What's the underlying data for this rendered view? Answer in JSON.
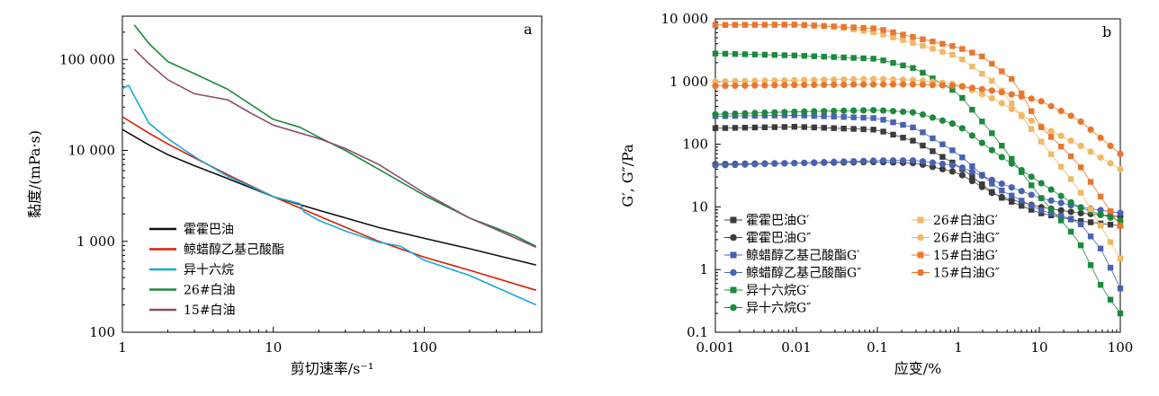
{
  "chart_data": [
    {
      "type": "line",
      "panel_label": "a",
      "xlabel": "剪切速率/s⁻¹",
      "ylabel": "黏度/(mPa·s)",
      "xscale": "log",
      "yscale": "log",
      "xlim": [
        1,
        600
      ],
      "ylim": [
        100,
        300000
      ],
      "xticks": [
        1,
        10,
        100
      ],
      "xtick_labels": [
        "1",
        "10",
        "100"
      ],
      "yticks": [
        100,
        1000,
        10000,
        100000
      ],
      "ytick_labels": [
        "100",
        "1 000",
        "10 000",
        "100 000"
      ],
      "legend_position": "bottom-left",
      "grid": false,
      "series": [
        {
          "name": "霍霍巴油",
          "color": "#111111",
          "x": [
            1,
            1.5,
            2,
            3,
            5,
            10,
            20,
            50,
            100,
            200,
            550
          ],
          "y": [
            17000,
            11500,
            9000,
            6800,
            4900,
            3100,
            2200,
            1420,
            1080,
            830,
            550
          ]
        },
        {
          "name": "鲸蜡醇乙基己酸酯",
          "color": "#d81e06",
          "x": [
            1,
            1.5,
            2,
            3,
            5,
            10,
            20,
            50,
            100,
            200,
            550
          ],
          "y": [
            23500,
            15500,
            11800,
            8300,
            5400,
            3100,
            1900,
            1000,
            670,
            480,
            290
          ]
        },
        {
          "name": "异十六烷",
          "color": "#16a9d6",
          "x": [
            1,
            1.1,
            1.5,
            2,
            2.6,
            3.2,
            5,
            10,
            15,
            16,
            20,
            30,
            50,
            70,
            100,
            200,
            550
          ],
          "y": [
            48000,
            52000,
            20000,
            13500,
            10000,
            8000,
            5200,
            3100,
            2600,
            2100,
            1700,
            1300,
            980,
            880,
            620,
            420,
            200
          ]
        },
        {
          "name": "26#白油",
          "color": "#1c8a3c",
          "x": [
            1.2,
            1.5,
            2,
            3,
            5,
            10,
            15,
            20,
            30,
            50,
            100,
            200,
            300,
            400,
            550
          ],
          "y": [
            240000,
            150000,
            95000,
            70000,
            47000,
            22000,
            18000,
            14000,
            10000,
            6200,
            3200,
            1800,
            1400,
            1150,
            880
          ]
        },
        {
          "name": "15#白油",
          "color": "#8e4d6b",
          "x": [
            1.2,
            1.5,
            2,
            3,
            5,
            7,
            10,
            20,
            30,
            50,
            100,
            200,
            300,
            550
          ],
          "y": [
            130000,
            90000,
            60000,
            42000,
            36000,
            26000,
            19000,
            13500,
            10500,
            7000,
            3400,
            1800,
            1350,
            860
          ]
        }
      ]
    },
    {
      "type": "scatter",
      "panel_label": "b",
      "xlabel": "应变/%",
      "ylabel": "G′, G″/Pa",
      "xscale": "log",
      "yscale": "log",
      "xlim": [
        0.001,
        100
      ],
      "ylim": [
        0.1,
        10000
      ],
      "xticks": [
        0.001,
        0.01,
        0.1,
        1,
        10,
        100
      ],
      "xtick_labels": [
        "0.001",
        "0.01",
        "0.1",
        "1",
        "10",
        "100"
      ],
      "yticks": [
        0.1,
        1,
        10,
        100,
        1000,
        10000
      ],
      "ytick_labels": [
        "0.1",
        "1",
        "10",
        "100",
        "1 000",
        "10 000"
      ],
      "legend_position": "bottom-left, two columns",
      "grid": false,
      "series": [
        {
          "name": "霍霍巴油G′",
          "marker": "square",
          "color": "#3c3c3c",
          "anchors_x": [
            0.001,
            0.01,
            0.1,
            0.3,
            1,
            3,
            10,
            30,
            100
          ],
          "anchors_y": [
            180,
            190,
            170,
            110,
            45,
            15,
            8,
            6,
            5
          ]
        },
        {
          "name": "霍霍巴油G″",
          "marker": "circle",
          "color": "#3c3c3c",
          "anchors_x": [
            0.001,
            0.01,
            0.1,
            0.3,
            1,
            3,
            10,
            30,
            100
          ],
          "anchors_y": [
            48,
            50,
            52,
            50,
            35,
            15,
            10,
            8,
            7
          ]
        },
        {
          "name": "鲸蜡醇乙基己酸酯G′",
          "marker": "square",
          "color": "#4a62b3",
          "anchors_x": [
            0.001,
            0.01,
            0.1,
            0.3,
            1,
            3,
            10,
            30,
            60,
            100
          ],
          "anchors_y": [
            280,
            290,
            260,
            180,
            70,
            20,
            9,
            6,
            2,
            0.5
          ]
        },
        {
          "name": "鲸蜡醇乙基己酸酯G″",
          "marker": "circle",
          "color": "#4a62b3",
          "anchors_x": [
            0.001,
            0.01,
            0.1,
            0.3,
            1,
            3,
            10,
            30,
            100
          ],
          "anchors_y": [
            46,
            50,
            55,
            55,
            45,
            25,
            14,
            10,
            8
          ]
        },
        {
          "name": "异十六烷G′",
          "marker": "square",
          "color": "#1c8a3c",
          "anchors_x": [
            0.001,
            0.01,
            0.1,
            0.3,
            1,
            3,
            10,
            30,
            60,
            100
          ],
          "anchors_y": [
            2800,
            2600,
            2300,
            1600,
            650,
            120,
            15,
            3,
            0.5,
            0.2
          ]
        },
        {
          "name": "异十六烷G″",
          "marker": "circle",
          "color": "#1c8a3c",
          "anchors_x": [
            0.001,
            0.01,
            0.1,
            0.3,
            1,
            3,
            10,
            30,
            100
          ],
          "anchors_y": [
            300,
            330,
            350,
            320,
            200,
            70,
            25,
            10,
            6
          ]
        },
        {
          "name": "26#白油G′",
          "marker": "square",
          "color": "#f0b968",
          "anchors_x": [
            0.001,
            0.01,
            0.03,
            0.1,
            0.3,
            1,
            3,
            10,
            30,
            100
          ],
          "anchors_y": [
            8000,
            8000,
            7500,
            6000,
            4000,
            2500,
            900,
            120,
            20,
            1.5
          ]
        },
        {
          "name": "26#白油G″",
          "marker": "circle",
          "color": "#f0b968",
          "anchors_x": [
            0.001,
            0.01,
            0.1,
            0.3,
            1,
            3,
            10,
            30,
            100
          ],
          "anchors_y": [
            1000,
            1050,
            1100,
            1050,
            900,
            500,
            200,
            100,
            40
          ]
        },
        {
          "name": "15#白油G′",
          "marker": "square",
          "color": "#e8772e",
          "anchors_x": [
            0.001,
            0.01,
            0.1,
            0.3,
            1,
            2,
            5,
            10,
            30,
            100
          ],
          "anchors_y": [
            8000,
            8100,
            7000,
            5000,
            3500,
            2500,
            1000,
            200,
            50,
            5
          ]
        },
        {
          "name": "15#白油G″",
          "marker": "circle",
          "color": "#e8772e",
          "anchors_x": [
            0.001,
            0.01,
            0.1,
            0.3,
            1,
            3,
            10,
            30,
            100
          ],
          "anchors_y": [
            850,
            880,
            900,
            900,
            850,
            700,
            500,
            250,
            70
          ]
        }
      ]
    }
  ]
}
